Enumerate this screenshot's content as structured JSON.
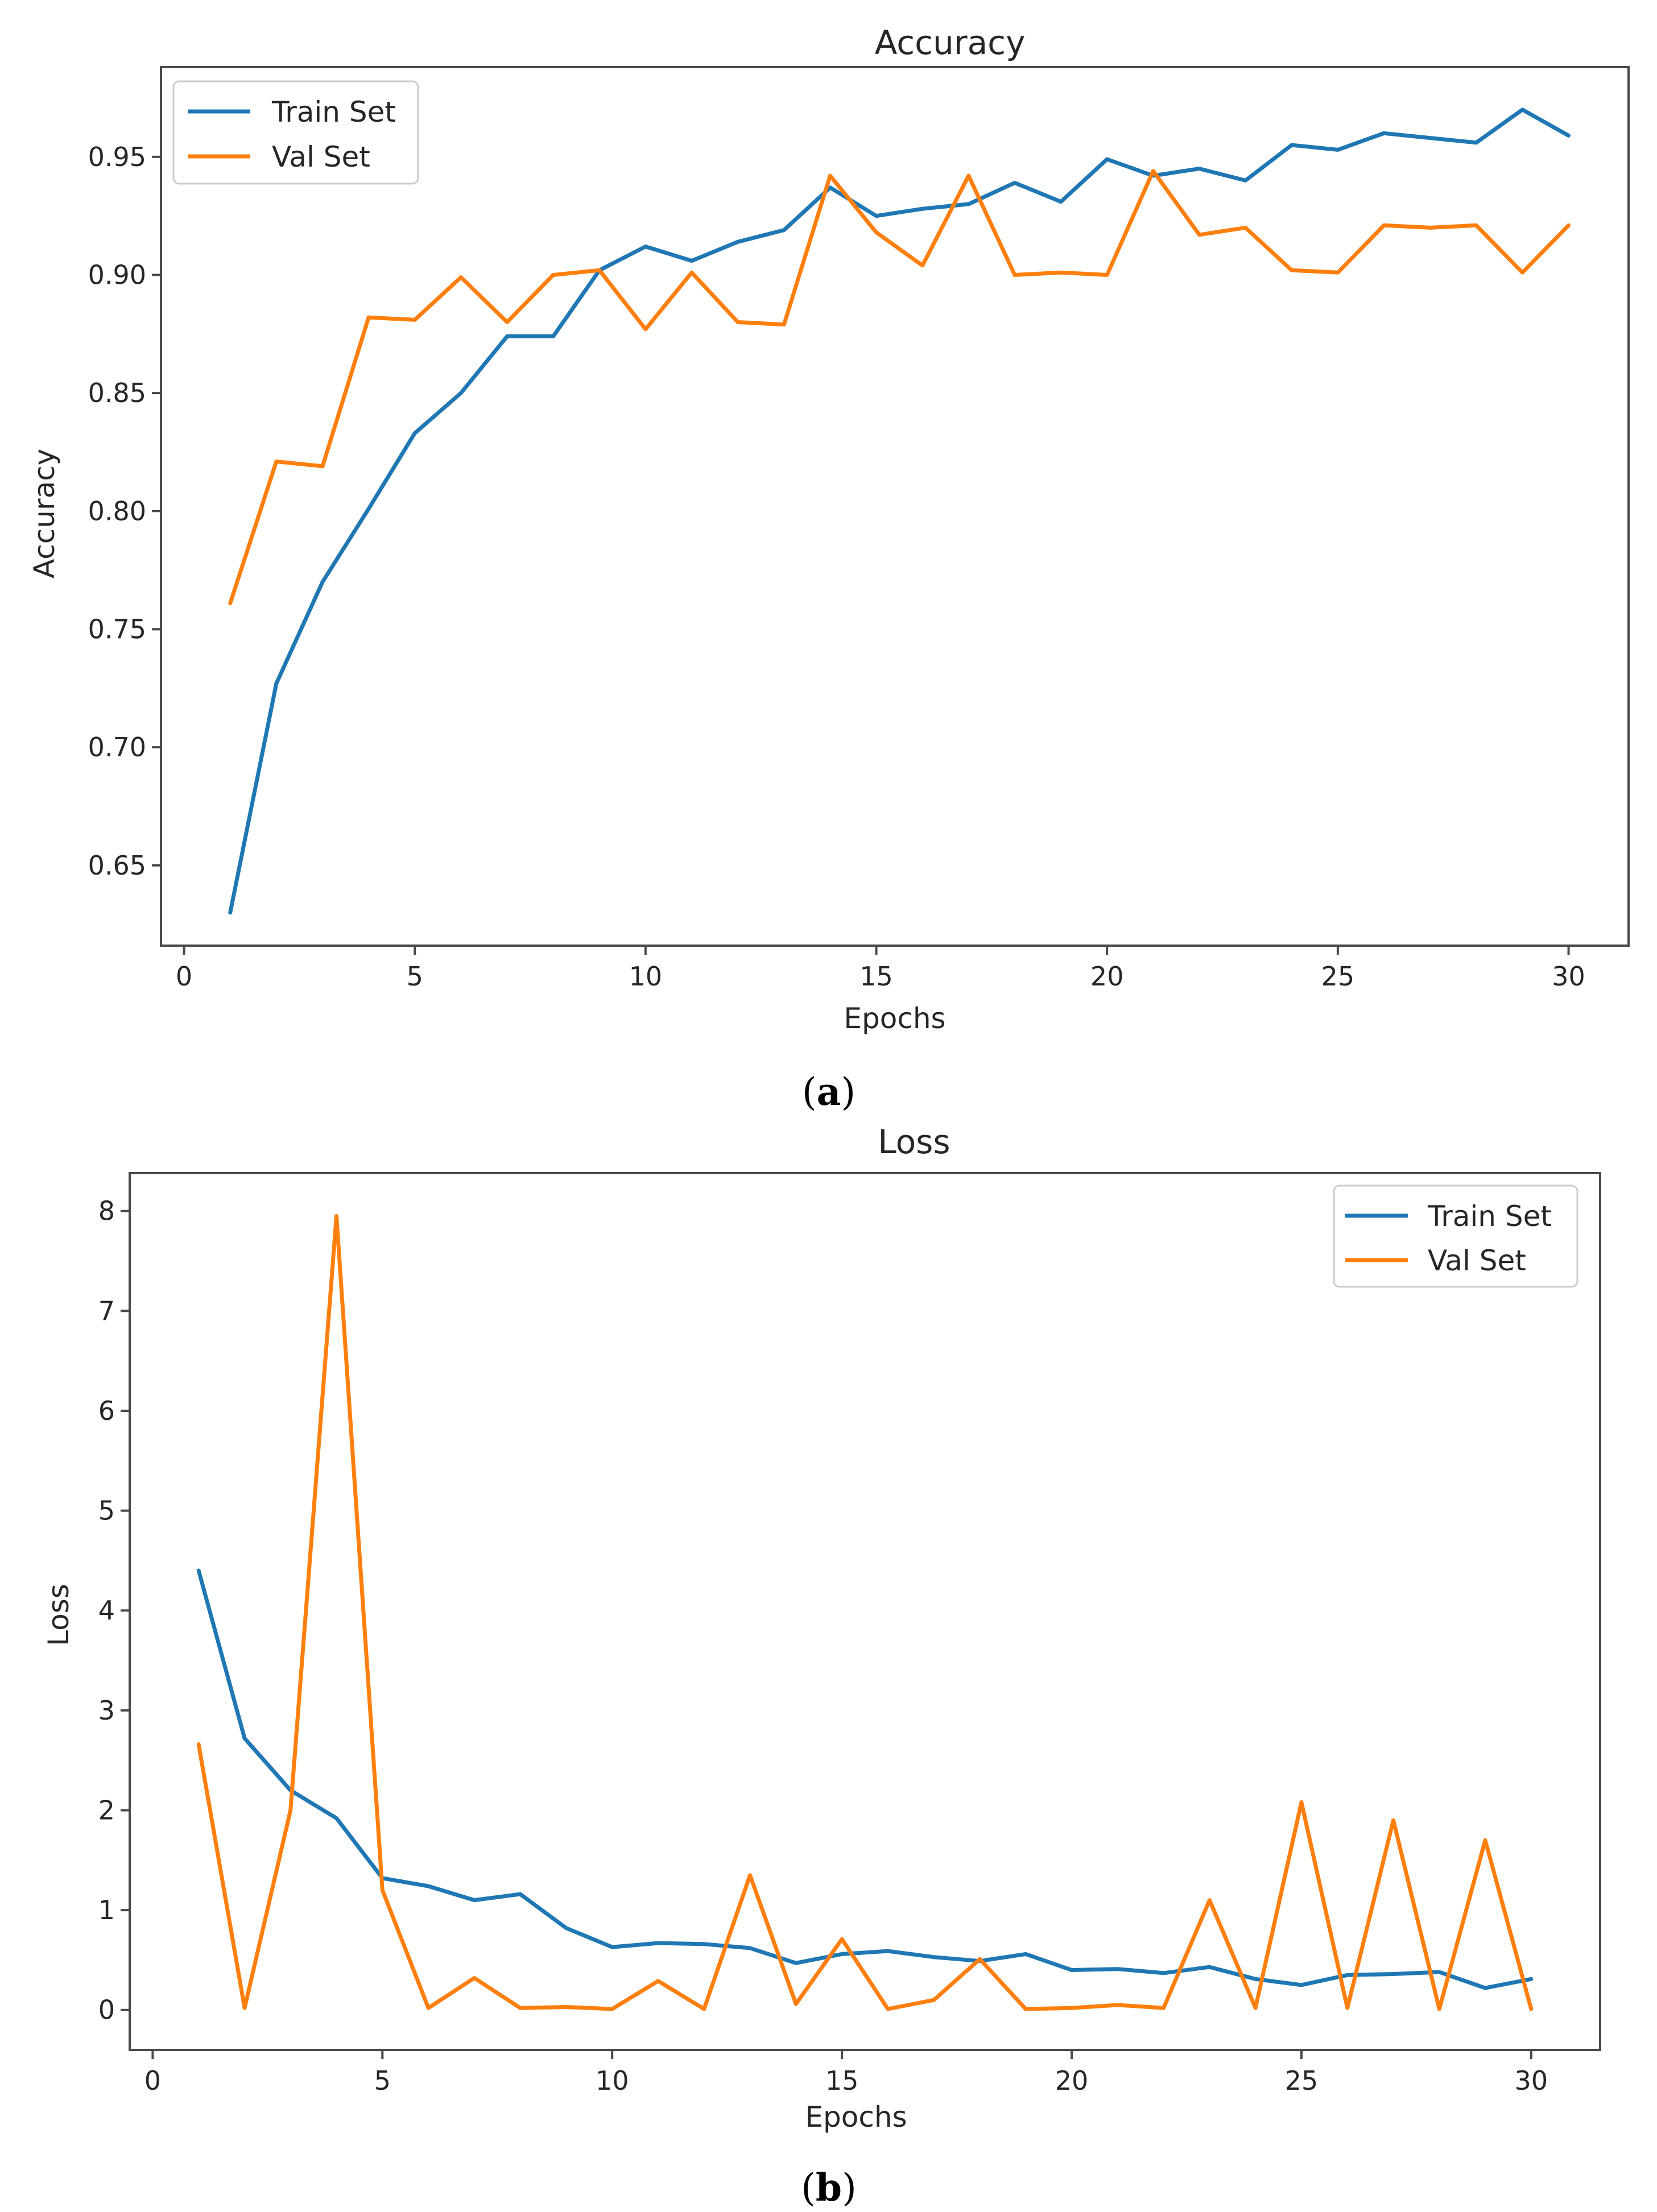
{
  "chart_data": [
    {
      "id": "accuracy",
      "type": "line",
      "title": "Accuracy",
      "xlabel": "Epochs",
      "ylabel": "Accuracy",
      "caption_letter": "a",
      "xlim": [
        -0.5,
        31.3
      ],
      "ylim": [
        0.616,
        0.988
      ],
      "xticks": [
        0,
        5,
        10,
        15,
        20,
        25,
        30
      ],
      "yticks": [
        0.65,
        0.7,
        0.75,
        0.8,
        0.85,
        0.9,
        0.95
      ],
      "ytick_labels": [
        "0.65",
        "0.70",
        "0.75",
        "0.80",
        "0.85",
        "0.90",
        "0.95"
      ],
      "legend_position": "top-left",
      "grid": false,
      "x": [
        1,
        2,
        3,
        4,
        5,
        6,
        7,
        8,
        9,
        10,
        11,
        12,
        13,
        14,
        15,
        16,
        17,
        18,
        19,
        20,
        21,
        22,
        23,
        24,
        25,
        26,
        27,
        28,
        29,
        30
      ],
      "series": [
        {
          "name": "Train Set",
          "color": "#1f77b4",
          "values": [
            0.63,
            0.727,
            0.77,
            0.801,
            0.833,
            0.85,
            0.874,
            0.874,
            0.902,
            0.912,
            0.906,
            0.914,
            0.919,
            0.937,
            0.925,
            0.928,
            0.93,
            0.939,
            0.931,
            0.949,
            0.942,
            0.945,
            0.94,
            0.955,
            0.953,
            0.96,
            0.958,
            0.956,
            0.97,
            0.959
          ]
        },
        {
          "name": "Val Set",
          "color": "#ff7f0e",
          "values": [
            0.761,
            0.821,
            0.819,
            0.882,
            0.881,
            0.899,
            0.88,
            0.9,
            0.902,
            0.877,
            0.901,
            0.88,
            0.879,
            0.942,
            0.918,
            0.904,
            0.942,
            0.9,
            0.901,
            0.9,
            0.944,
            0.917,
            0.92,
            0.902,
            0.901,
            0.921,
            0.92,
            0.921,
            0.901,
            0.921
          ]
        }
      ]
    },
    {
      "id": "loss",
      "type": "line",
      "title": "Loss",
      "xlabel": "Epochs",
      "ylabel": "Loss",
      "caption_letter": "b",
      "xlim": [
        -0.5,
        31.5
      ],
      "ylim": [
        -0.4,
        8.38
      ],
      "xticks": [
        0,
        5,
        10,
        15,
        20,
        25,
        30
      ],
      "yticks": [
        0,
        1,
        2,
        3,
        4,
        5,
        6,
        7,
        8
      ],
      "ytick_labels": [
        "0",
        "1",
        "2",
        "3",
        "4",
        "5",
        "6",
        "7",
        "8"
      ],
      "legend_position": "top-right",
      "grid": false,
      "x": [
        1,
        2,
        3,
        4,
        5,
        6,
        7,
        8,
        9,
        10,
        11,
        12,
        13,
        14,
        15,
        16,
        17,
        18,
        19,
        20,
        21,
        22,
        23,
        24,
        25,
        26,
        27,
        28,
        29,
        30
      ],
      "series": [
        {
          "name": "Train Set",
          "color": "#1f77b4",
          "values": [
            4.4,
            2.72,
            2.2,
            1.92,
            1.32,
            1.24,
            1.1,
            1.16,
            0.82,
            0.63,
            0.67,
            0.66,
            0.62,
            0.47,
            0.56,
            0.59,
            0.53,
            0.49,
            0.56,
            0.4,
            0.41,
            0.37,
            0.43,
            0.31,
            0.25,
            0.35,
            0.36,
            0.38,
            0.22,
            0.31
          ]
        },
        {
          "name": "Val Set",
          "color": "#ff7f0e",
          "values": [
            2.66,
            0.02,
            2.0,
            7.95,
            1.2,
            0.02,
            0.32,
            0.02,
            0.03,
            0.01,
            0.29,
            0.01,
            1.35,
            0.06,
            0.71,
            0.01,
            0.1,
            0.51,
            0.01,
            0.02,
            0.05,
            0.02,
            1.1,
            0.02,
            2.08,
            0.02,
            1.9,
            0.01,
            1.7,
            0.01
          ]
        }
      ]
    }
  ]
}
